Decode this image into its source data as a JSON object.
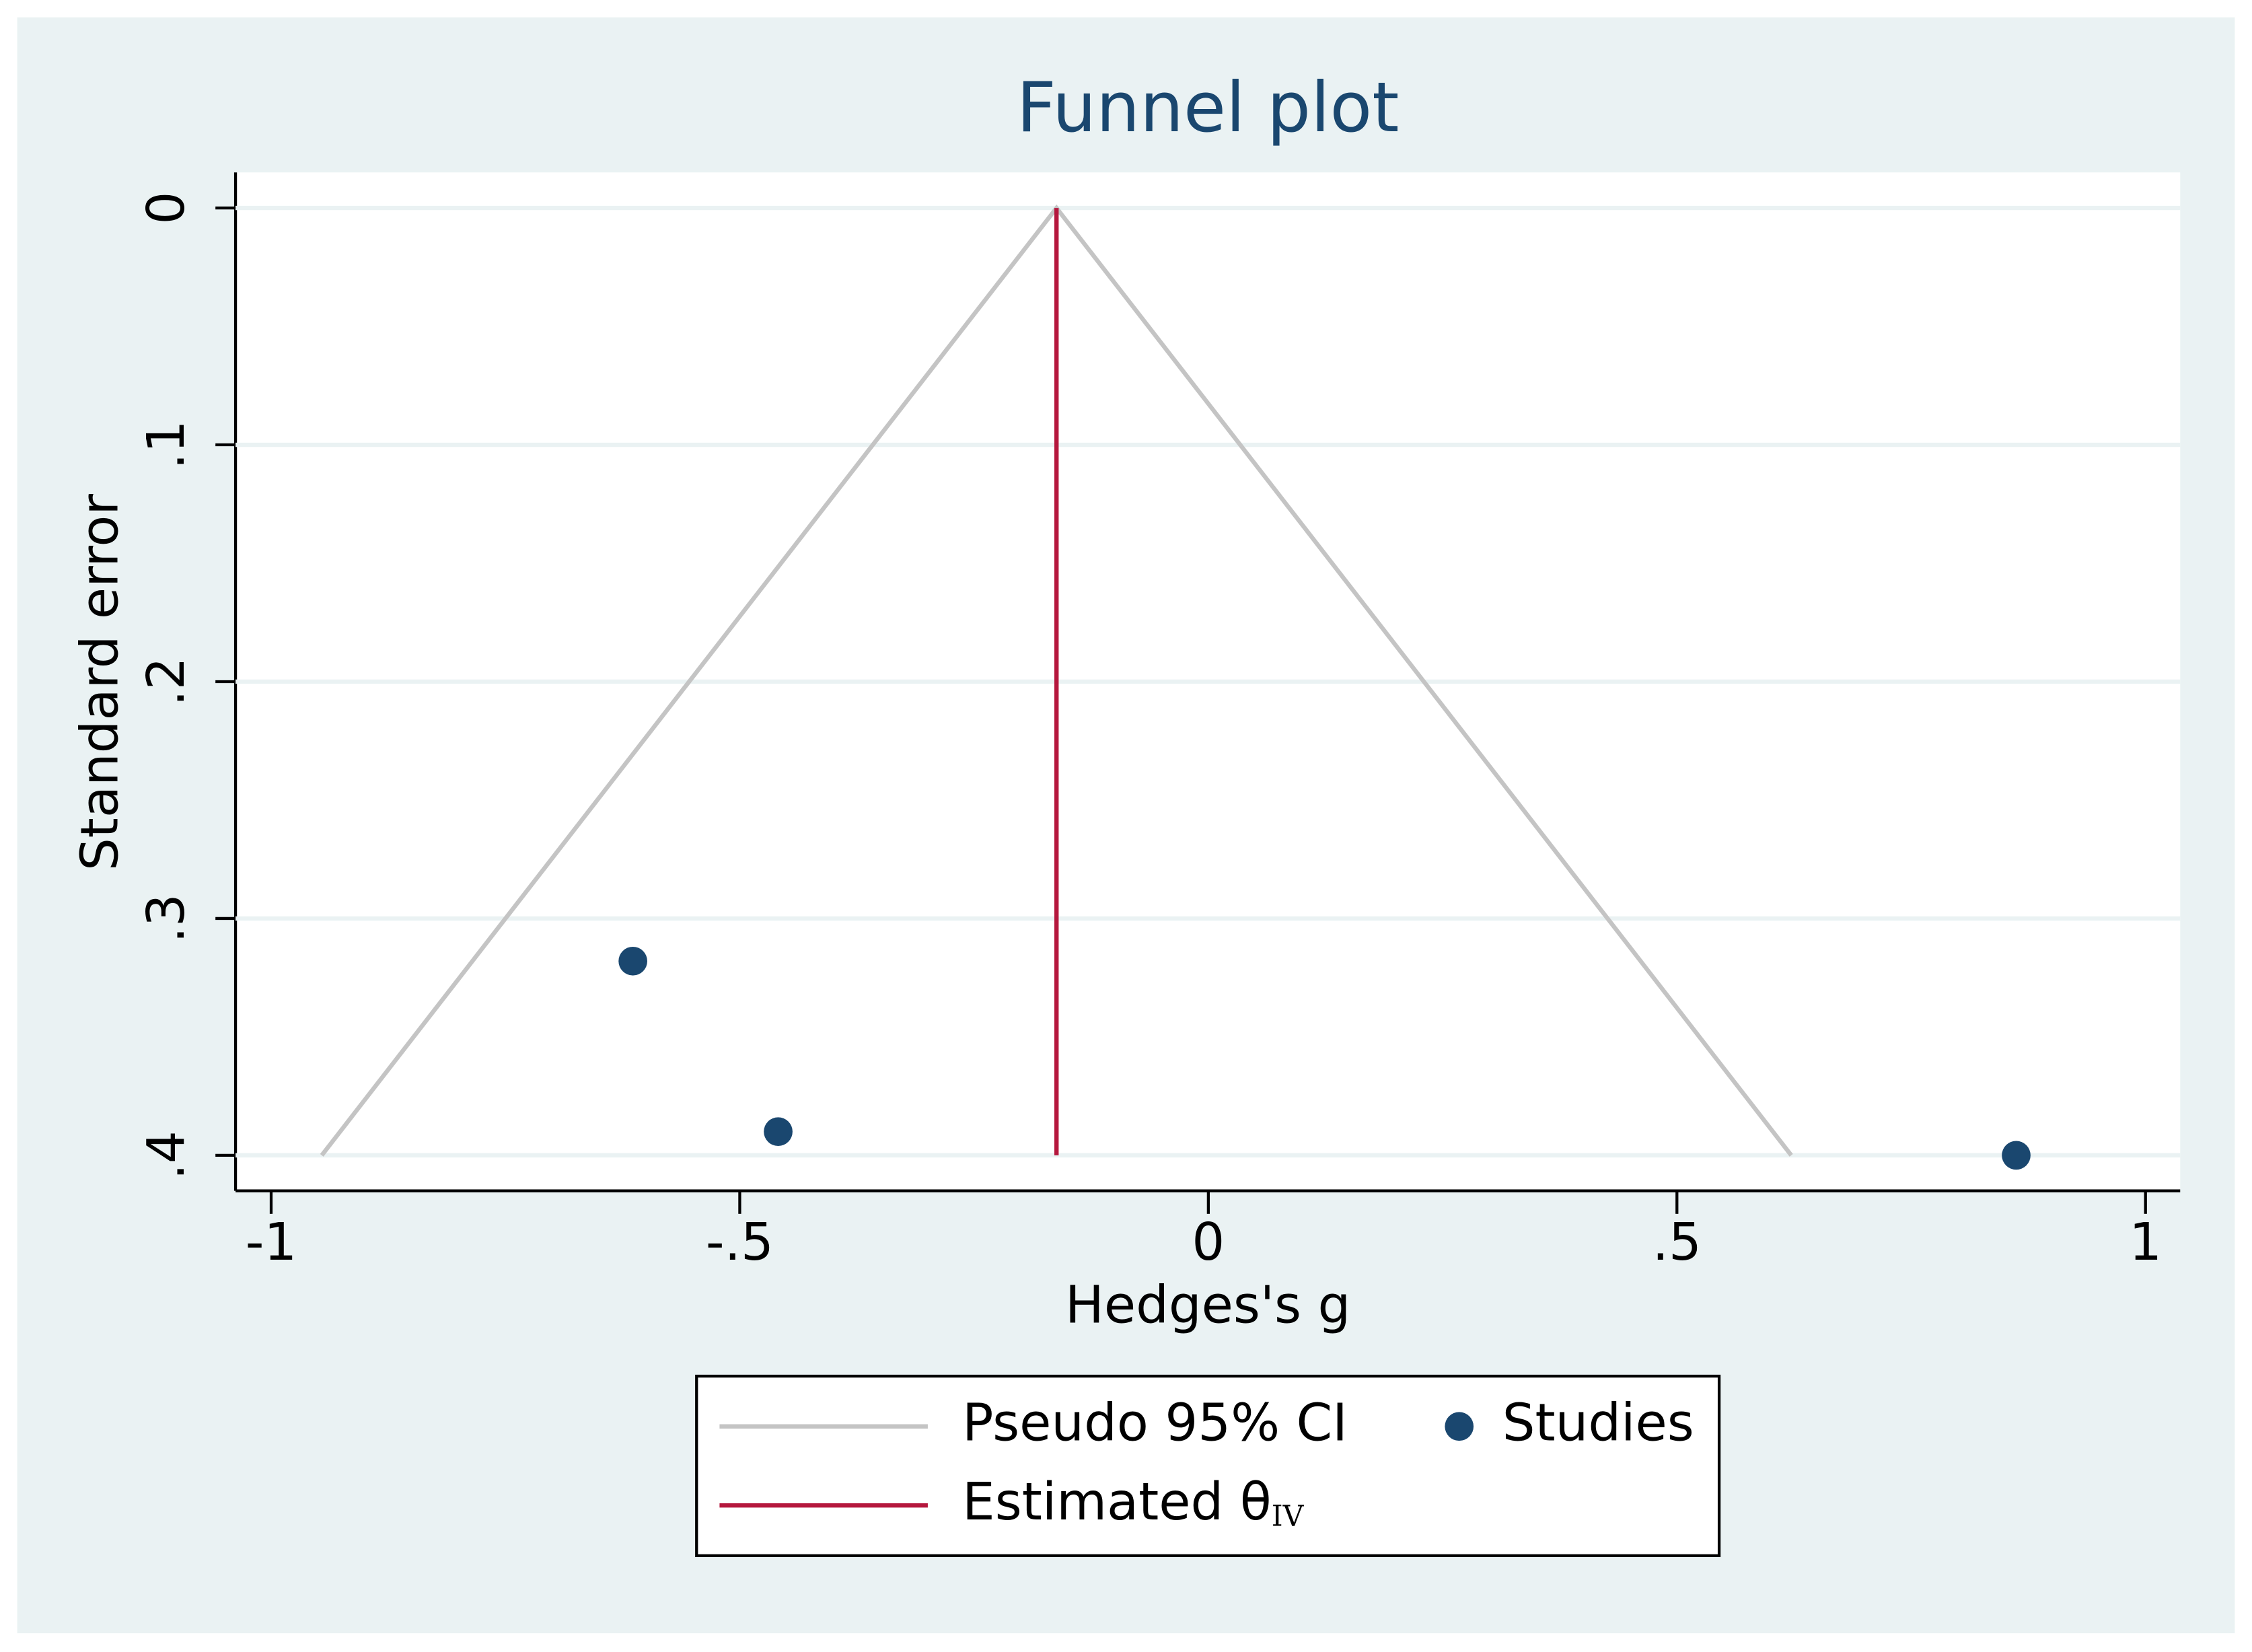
{
  "chart_data": {
    "type": "scatter",
    "title": "Funnel plot",
    "x_label": "Hedges's g",
    "y_label": "Standard error",
    "xlim": [
      -1.038,
      1.037
    ],
    "ylim": [
      -0.015,
      0.415
    ],
    "y_reversed": true,
    "grid": true,
    "xticks": [
      -1,
      {
        "value": -0.5,
        "label": "-.5"
      },
      0,
      {
        "value": 0.5,
        "label": ".5"
      },
      1
    ],
    "yticks": [
      0,
      {
        "value": 0.1,
        "label": ".1"
      },
      {
        "value": 0.2,
        "label": ".2"
      },
      {
        "value": 0.3,
        "label": ".3"
      },
      {
        "value": 0.4,
        "label": ".4"
      }
    ],
    "series": [
      {
        "name": "Pseudo 95% CI",
        "type": "line",
        "color": "#c4c4c4",
        "x": [
          -0.946,
          -0.162,
          0.622
        ],
        "values": [
          0.4,
          0,
          0.4
        ]
      },
      {
        "name": "Estimated θ",
        "name_subscript": "IV",
        "type": "line",
        "color": "#b5173d",
        "x": [
          -0.162,
          -0.162
        ],
        "values": [
          0,
          0.4
        ]
      },
      {
        "name": "Studies",
        "type": "scatter",
        "color": "#1a476f",
        "x": [
          -0.614,
          -0.459,
          0.862
        ],
        "values": [
          0.318,
          0.39,
          0.4
        ]
      }
    ]
  }
}
